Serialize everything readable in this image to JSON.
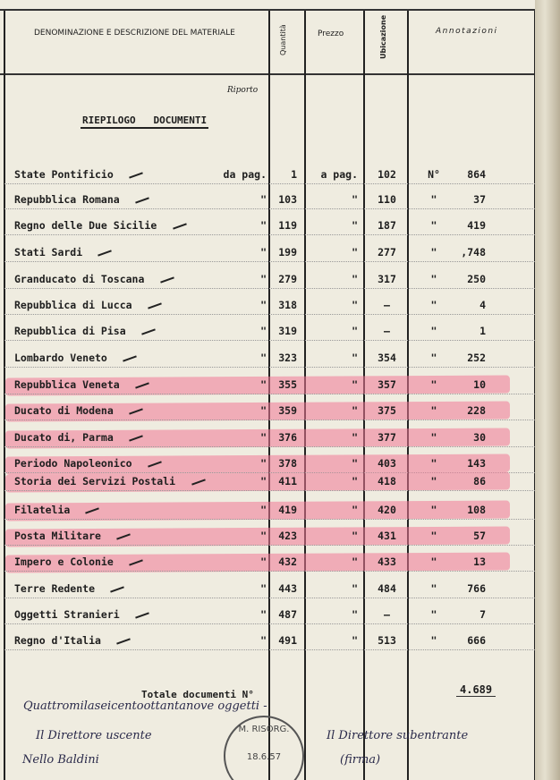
{
  "header": {
    "description": "DENOMINAZIONE E DESCRIZIONE DEL MATERIALE",
    "quantity": "Quantità",
    "price": "Prezzo",
    "location": "Ubicazione",
    "notes": "Annotazioni"
  },
  "riporto": "Riporto",
  "title": "RIEPILOGO   DOCUMENTI",
  "rows": [
    {
      "name": "State Pontificio",
      "d1": "da pag.",
      "p1": "1",
      "d2": "a pag.",
      "p2": "102",
      "d3": "N°",
      "count": "864",
      "highlight": false
    },
    {
      "name": "Repubblica Romana",
      "d1": "\"",
      "p1": "103",
      "d2": "\"",
      "p2": "110",
      "d3": "\"",
      "count": "37",
      "highlight": false
    },
    {
      "name": "Regno delle Due Sicilie",
      "d1": "\"",
      "p1": "119",
      "d2": "\"",
      "p2": "187",
      "d3": "\"",
      "count": "419",
      "highlight": false
    },
    {
      "name": "Stati Sardi",
      "d1": "\"",
      "p1": "199",
      "d2": "\"",
      "p2": "277",
      "d3": "\"",
      "count": ",748",
      "highlight": false
    },
    {
      "name": "Granducato di Toscana",
      "d1": "\"",
      "p1": "279",
      "d2": "\"",
      "p2": "317",
      "d3": "\"",
      "count": "250",
      "highlight": false
    },
    {
      "name": "Repubblica di Lucca",
      "d1": "\"",
      "p1": "318",
      "d2": "\"",
      "p2": "—",
      "d3": "\"",
      "count": "4",
      "highlight": false
    },
    {
      "name": "Repubblica di Pisa",
      "d1": "\"",
      "p1": "319",
      "d2": "\"",
      "p2": "—",
      "d3": "\"",
      "count": "1",
      "highlight": false
    },
    {
      "name": "Lombardo Veneto",
      "d1": "\"",
      "p1": "323",
      "d2": "\"",
      "p2": "354",
      "d3": "\"",
      "count": "252",
      "highlight": false
    },
    {
      "name": "Repubblica Veneta",
      "d1": "\"",
      "p1": "355",
      "d2": "\"",
      "p2": "357",
      "d3": "\"",
      "count": "10",
      "highlight": true
    },
    {
      "name": "Ducato di Modena",
      "d1": "\"",
      "p1": "359",
      "d2": "\"",
      "p2": "375",
      "d3": "\"",
      "count": "228",
      "highlight": true
    },
    {
      "name": "Ducato di, Parma",
      "d1": "\"",
      "p1": "376",
      "d2": "\"",
      "p2": "377",
      "d3": "\"",
      "count": "30",
      "highlight": true
    },
    {
      "name": "Periodo Napoleonico",
      "d1": "\"",
      "p1": "378",
      "d2": "\"",
      "p2": "403",
      "d3": "\"",
      "count": "143",
      "highlight": true
    },
    {
      "name": "Storia dei Servizi Postali",
      "d1": "\"",
      "p1": "411",
      "d2": "\"",
      "p2": "418",
      "d3": "\"",
      "count": "86",
      "highlight": true
    },
    {
      "name": "Filatelia",
      "d1": "\"",
      "p1": "419",
      "d2": "\"",
      "p2": "420",
      "d3": "\"",
      "count": "108",
      "highlight": true
    },
    {
      "name": "Posta Militare",
      "d1": "\"",
      "p1": "423",
      "d2": "\"",
      "p2": "431",
      "d3": "\"",
      "count": "57",
      "highlight": true
    },
    {
      "name": "Impero e Colonie",
      "d1": "\"",
      "p1": "432",
      "d2": "\"",
      "p2": "433",
      "d3": "\"",
      "count": "13",
      "highlight": true
    },
    {
      "name": "Terre Redente",
      "d1": "\"",
      "p1": "443",
      "d2": "\"",
      "p2": "484",
      "d3": "\"",
      "count": "766",
      "highlight": false
    },
    {
      "name": "Oggetti Stranieri",
      "d1": "\"",
      "p1": "487",
      "d2": "\"",
      "p2": "—",
      "d3": "\"",
      "count": "7",
      "highlight": false
    },
    {
      "name": "Regno d'Italia",
      "d1": "\"",
      "p1": "491",
      "d2": "\"",
      "p2": "513",
      "d3": "\"",
      "count": "666",
      "highlight": false
    }
  ],
  "total": {
    "label": "Totale documenti N°",
    "value": "4.689"
  },
  "handwriting": {
    "total_words": "Quattromilaseicentoottantanove oggetti -",
    "outgoing_title": "Il Direttore uscente",
    "outgoing_signature": "Nello Baldini",
    "incoming_title": "Il Direttore subentrante",
    "incoming_signature": "(firma)"
  },
  "stamp": {
    "date": "18.6.57",
    "text": "M. RISORG."
  },
  "colors": {
    "highlight": "#f07896",
    "paper": "#efece0",
    "ink": "#1e1e1e"
  }
}
